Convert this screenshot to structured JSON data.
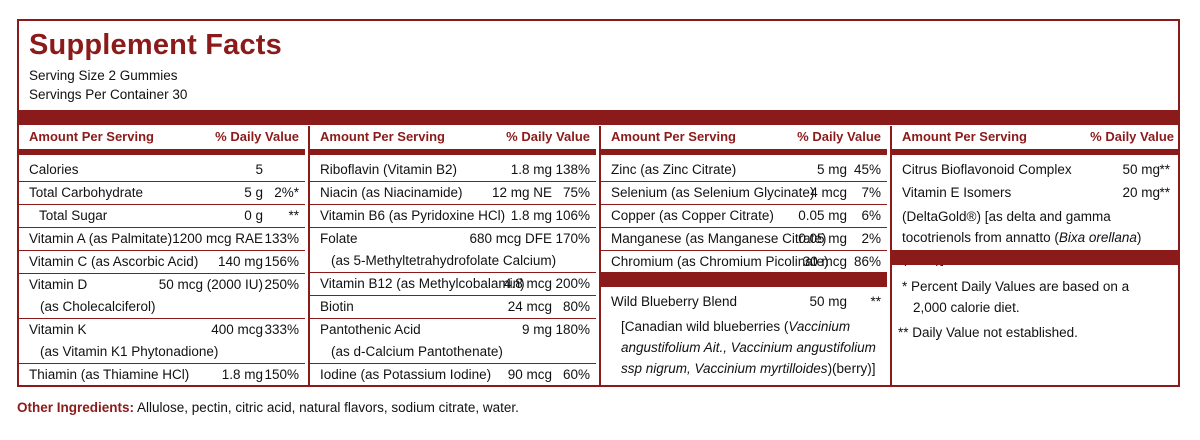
{
  "title": "Supplement Facts",
  "serving_size": "Serving Size 2 Gummies",
  "servings_per_container": "Servings Per Container 30",
  "header_amount": "Amount Per Serving",
  "header_dv": "% Daily Value",
  "col1": [
    {
      "name": "Calories",
      "amount": "5",
      "dv": ""
    },
    {
      "name": "Total Carbohydrate",
      "amount": "5 g",
      "dv": "2%*"
    },
    {
      "name": "Total Sugar",
      "amount": "0 g",
      "dv": "**"
    },
    {
      "name": "Vitamin A (as Palmitate)",
      "amount": "1200 mcg RAE",
      "dv": "133%"
    },
    {
      "name": "Vitamin C (as Ascorbic Acid)",
      "amount": "140 mg",
      "dv": "156%"
    },
    {
      "name": "Vitamin D",
      "sub": "(as Cholecalciferol)",
      "amount": "50 mcg (2000 IU)",
      "dv": "250%"
    },
    {
      "name": "Vitamin K",
      "sub": "(as Vitamin K1 Phytonadione)",
      "amount": "400 mcg",
      "dv": "333%"
    },
    {
      "name": "Thiamin (as Thiamine HCl)",
      "amount": "1.8 mg",
      "dv": "150%"
    }
  ],
  "col2": [
    {
      "name": "Riboflavin (Vitamin B2)",
      "amount": "1.8 mg",
      "dv": "138%"
    },
    {
      "name": "Niacin (as Niacinamide)",
      "amount": "12 mg NE",
      "dv": "75%"
    },
    {
      "name": "Vitamin B6 (as Pyridoxine HCl)",
      "amount": "1.8 mg",
      "dv": "106%"
    },
    {
      "name": "Folate",
      "sub": "(as 5-Methyltetrahydrofolate Calcium)",
      "amount": "680 mcg DFE",
      "dv": "170%"
    },
    {
      "name": "Vitamin B12 (as Methylcobalamin)",
      "amount": "4.8 mcg",
      "dv": "200%"
    },
    {
      "name": "Biotin",
      "amount": "24 mcg",
      "dv": "80%"
    },
    {
      "name": "Pantothenic Acid",
      "sub": "(as d-Calcium Pantothenate)",
      "amount": "9 mg",
      "dv": "180%"
    },
    {
      "name": "Iodine (as Potassium Iodine)",
      "amount": "90 mcg",
      "dv": "60%"
    }
  ],
  "col3": [
    {
      "name": "Zinc (as Zinc Citrate)",
      "amount": "5 mg",
      "dv": "45%"
    },
    {
      "name": "Selenium (as Selenium Glycinate)",
      "amount": "4 mcg",
      "dv": "7%"
    },
    {
      "name": "Copper (as Copper Citrate)",
      "amount": "0.05 mg",
      "dv": "6%"
    },
    {
      "name": "Manganese (as Manganese Citrate)",
      "amount": "0.05 mg",
      "dv": "2%"
    },
    {
      "name": "Chromium (as Chromium Picolinate)",
      "amount": "30 mcg",
      "dv": "86%"
    }
  ],
  "blend": {
    "name": "Wild Blueberry Blend",
    "amount": "50 mg",
    "dv": "**",
    "desc_open": "[Canadian wild blueberries (",
    "desc_italic": "Vaccinium angustifolium Ait., Vaccinium angustifolium ssp nigrum, Vaccinium myrtilloides",
    "desc_close": ")(berry)]"
  },
  "col4": [
    {
      "name": "Citrus Bioflavonoid Complex",
      "amount": "50 mg",
      "dv": "**"
    }
  ],
  "vitamin_e": {
    "name": "Vitamin E Isomers",
    "amount": "20 mg",
    "dv": "**",
    "desc_open": "(DeltaGold®) [as delta and gamma tocotrienols from annatto (",
    "desc_italic": "Bixa orellana",
    "desc_close": ")(seed)]"
  },
  "footnote1_line1": "* Percent Daily Values are based on a",
  "footnote1_line2": "2,000 calorie diet.",
  "footnote2": "** Daily Value not established.",
  "other_label": "Other Ingredients:",
  "other_text": " Allulose, pectin, citric acid, natural flavors, sodium citrate, water.",
  "colors": {
    "accent": "#8b1a1a",
    "text": "#111111"
  }
}
